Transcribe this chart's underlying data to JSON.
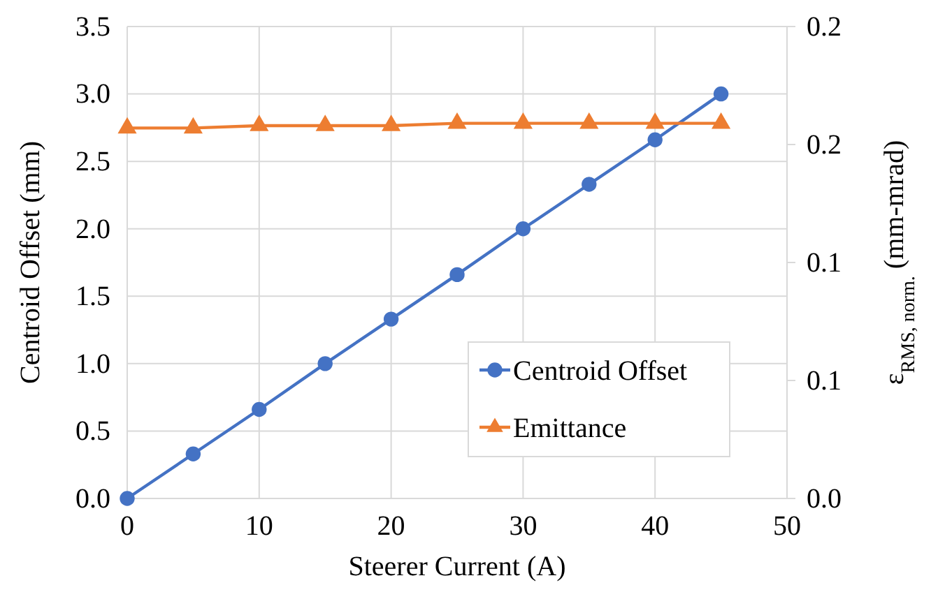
{
  "chart_data": {
    "type": "line",
    "xlabel": "Steerer Current (A)",
    "ylabel": "Centroid Offset (mm)",
    "y2label": "ε$_{RMS, norm.}$ (mm-mrad)",
    "x": [
      0,
      5,
      10,
      15,
      20,
      25,
      30,
      35,
      40,
      45
    ],
    "xlim": [
      0,
      50
    ],
    "xticks": [
      0,
      10,
      20,
      30,
      40,
      50
    ],
    "ylim": [
      0,
      3.5
    ],
    "yticks": [
      {
        "value": 0,
        "label": "0.0"
      },
      {
        "value": 0.5,
        "label": "0.5"
      },
      {
        "value": 1,
        "label": "1.0"
      },
      {
        "value": 1.5,
        "label": "1.5"
      },
      {
        "value": 2,
        "label": "2.0"
      },
      {
        "value": 2.5,
        "label": "2.5"
      },
      {
        "value": 3,
        "label": "3.0"
      },
      {
        "value": 3.5,
        "label": "3.5"
      }
    ],
    "y2lim": [
      0,
      0.2
    ],
    "y2ticks": [
      {
        "value": 0,
        "label": "0.0"
      },
      {
        "value": 0.05,
        "label": "0.1"
      },
      {
        "value": 0.1,
        "label": "0.1"
      },
      {
        "value": 0.15,
        "label": "0.2"
      },
      {
        "value": 0.2,
        "label": "0.2"
      }
    ],
    "grid": true,
    "legend": "bottom right",
    "series": [
      {
        "name": "Centroid Offset",
        "color": "#4472c4",
        "marker": "circle",
        "values": [
          0,
          0.33,
          0.66,
          1.0,
          1.33,
          1.66,
          2.0,
          2.33,
          2.66,
          3.0
        ]
      },
      {
        "name": "Emittance",
        "color": "#ed7d31",
        "marker": "triangle",
        "axis": "y2",
        "values": [
          0.157,
          0.157,
          0.158,
          0.158,
          0.158,
          0.159,
          0.159,
          0.159,
          0.159,
          0.159
        ]
      }
    ]
  }
}
